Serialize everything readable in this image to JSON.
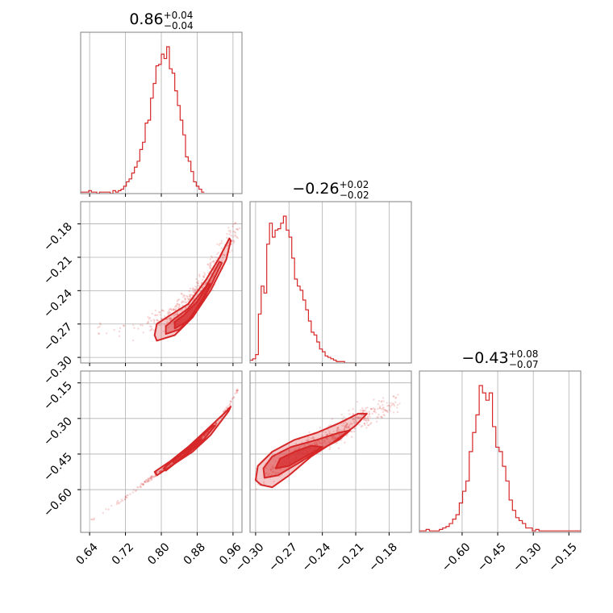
{
  "chart_data": {
    "type": "corner",
    "color": "#d62728",
    "grid": true,
    "params": [
      {
        "title": {
          "value": "0.86",
          "plus": "+0.04",
          "minus": "−0.04"
        },
        "range": [
          0.62,
          0.98
        ],
        "ticks": [
          0.64,
          0.72,
          0.8,
          0.88,
          0.96
        ],
        "tick_labels": [
          "0.64",
          "0.72",
          "0.80",
          "0.88",
          "0.96"
        ],
        "histogram": {
          "bins_start": 0.62,
          "bin_width": 0.006,
          "counts": [
            1,
            1,
            1,
            2,
            1,
            1,
            0,
            1,
            1,
            1,
            1,
            0,
            2,
            1,
            2,
            3,
            5,
            8,
            10,
            14,
            18,
            22,
            30,
            35,
            48,
            50,
            65,
            75,
            87,
            88,
            95,
            92,
            100,
            85,
            82,
            70,
            60,
            50,
            40,
            25,
            22,
            15,
            8,
            5,
            3,
            1
          ]
        }
      },
      {
        "title": {
          "value": "−0.26",
          "plus": "+0.02",
          "minus": "−0.02"
        },
        "range": [
          -0.305,
          -0.16
        ],
        "ticks": [
          -0.3,
          -0.27,
          -0.24,
          -0.21,
          -0.18
        ],
        "tick_labels": [
          "−0.30",
          "−0.27",
          "−0.24",
          "−0.21",
          "−0.18"
        ],
        "histogram": {
          "bins_start": -0.305,
          "bin_width": 0.0025,
          "counts": [
            2,
            3,
            6,
            35,
            55,
            50,
            85,
            100,
            90,
            95,
            96,
            100,
            105,
            95,
            90,
            75,
            60,
            55,
            52,
            45,
            38,
            30,
            22,
            20,
            15,
            10,
            8,
            5,
            4,
            3,
            2,
            1,
            1,
            1,
            0,
            0,
            0,
            0
          ]
        }
      },
      {
        "title": {
          "value": "−0.43",
          "plus": "+0.08",
          "minus": "−0.07"
        },
        "range": [
          -0.78,
          -0.1
        ],
        "ticks": [
          -0.6,
          -0.45,
          -0.3,
          -0.15
        ],
        "tick_labels": [
          "−0.60",
          "−0.45",
          "−0.30",
          "−0.15"
        ],
        "histogram": {
          "bins_start": -0.78,
          "bin_width": 0.014,
          "counts": [
            1,
            1,
            2,
            1,
            1,
            1,
            2,
            3,
            4,
            6,
            9,
            12,
            20,
            28,
            35,
            55,
            68,
            80,
            100,
            95,
            90,
            95,
            72,
            58,
            55,
            45,
            35,
            22,
            15,
            10,
            8,
            6,
            3,
            3,
            1,
            2,
            1,
            1,
            1,
            1,
            1,
            1,
            1,
            1,
            1,
            1,
            1,
            1,
            1
          ]
        }
      }
    ],
    "pairs": [
      {
        "x": 0,
        "y": 1,
        "trend": [
          [
            0.66,
            -0.273
          ],
          [
            0.72,
            -0.272
          ],
          [
            0.78,
            -0.269
          ],
          [
            0.81,
            -0.265
          ],
          [
            0.84,
            -0.258
          ],
          [
            0.87,
            -0.247
          ],
          [
            0.9,
            -0.232
          ],
          [
            0.93,
            -0.212
          ],
          [
            0.955,
            -0.192
          ],
          [
            0.965,
            -0.185
          ]
        ],
        "contours": [
          {
            "level": "outer",
            "points": [
              [
                0.79,
                -0.285
              ],
              [
                0.83,
                -0.28
              ],
              [
                0.87,
                -0.264
              ],
              [
                0.91,
                -0.24
              ],
              [
                0.945,
                -0.212
              ],
              [
                0.955,
                -0.195
              ],
              [
                0.952,
                -0.193
              ],
              [
                0.93,
                -0.21
              ],
              [
                0.9,
                -0.23
              ],
              [
                0.86,
                -0.252
              ],
              [
                0.82,
                -0.262
              ],
              [
                0.79,
                -0.27
              ],
              [
                0.785,
                -0.28
              ]
            ]
          },
          {
            "level": "middle",
            "points": [
              [
                0.81,
                -0.279
              ],
              [
                0.84,
                -0.275
              ],
              [
                0.88,
                -0.258
              ],
              [
                0.91,
                -0.236
              ],
              [
                0.935,
                -0.215
              ],
              [
                0.93,
                -0.214
              ],
              [
                0.9,
                -0.236
              ],
              [
                0.86,
                -0.256
              ],
              [
                0.83,
                -0.265
              ],
              [
                0.81,
                -0.272
              ]
            ]
          },
          {
            "level": "inner",
            "points": [
              [
                0.83,
                -0.274
              ],
              [
                0.86,
                -0.267
              ],
              [
                0.89,
                -0.249
              ],
              [
                0.91,
                -0.234
              ],
              [
                0.905,
                -0.234
              ],
              [
                0.88,
                -0.25
              ],
              [
                0.85,
                -0.262
              ],
              [
                0.83,
                -0.268
              ]
            ]
          }
        ]
      },
      {
        "x": 0,
        "y": 2,
        "trend": [
          [
            0.645,
            -0.73
          ],
          [
            0.7,
            -0.66
          ],
          [
            0.75,
            -0.59
          ],
          [
            0.8,
            -0.52
          ],
          [
            0.85,
            -0.45
          ],
          [
            0.88,
            -0.4
          ],
          [
            0.92,
            -0.33
          ],
          [
            0.95,
            -0.25
          ],
          [
            0.97,
            -0.18
          ]
        ],
        "contours": [
          {
            "level": "outer",
            "points": [
              [
                0.79,
                -0.54
              ],
              [
                0.83,
                -0.49
              ],
              [
                0.87,
                -0.44
              ],
              [
                0.91,
                -0.37
              ],
              [
                0.95,
                -0.27
              ],
              [
                0.955,
                -0.25
              ],
              [
                0.945,
                -0.27
              ],
              [
                0.9,
                -0.35
              ],
              [
                0.86,
                -0.42
              ],
              [
                0.82,
                -0.48
              ],
              [
                0.785,
                -0.525
              ]
            ]
          },
          {
            "level": "middle",
            "points": [
              [
                0.81,
                -0.52
              ],
              [
                0.85,
                -0.46
              ],
              [
                0.89,
                -0.4
              ],
              [
                0.92,
                -0.33
              ],
              [
                0.915,
                -0.33
              ],
              [
                0.88,
                -0.39
              ],
              [
                0.84,
                -0.45
              ],
              [
                0.805,
                -0.51
              ]
            ]
          },
          {
            "level": "inner",
            "points": [
              [
                0.83,
                -0.49
              ],
              [
                0.86,
                -0.44
              ],
              [
                0.89,
                -0.39
              ],
              [
                0.885,
                -0.39
              ],
              [
                0.855,
                -0.435
              ],
              [
                0.825,
                -0.48
              ]
            ]
          }
        ]
      },
      {
        "x": 1,
        "y": 2,
        "trend": [
          [
            -0.3,
            -0.57
          ],
          [
            -0.29,
            -0.54
          ],
          [
            -0.275,
            -0.48
          ],
          [
            -0.255,
            -0.42
          ],
          [
            -0.235,
            -0.38
          ],
          [
            -0.215,
            -0.33
          ],
          [
            -0.2,
            -0.29
          ],
          [
            -0.185,
            -0.26
          ],
          [
            -0.175,
            -0.25
          ]
        ],
        "contours": [
          {
            "level": "outer",
            "points": [
              [
                -0.295,
                -0.58
              ],
              [
                -0.285,
                -0.59
              ],
              [
                -0.27,
                -0.54
              ],
              [
                -0.25,
                -0.46
              ],
              [
                -0.23,
                -0.4
              ],
              [
                -0.21,
                -0.33
              ],
              [
                -0.2,
                -0.28
              ],
              [
                -0.208,
                -0.28
              ],
              [
                -0.225,
                -0.32
              ],
              [
                -0.245,
                -0.36
              ],
              [
                -0.265,
                -0.39
              ],
              [
                -0.285,
                -0.44
              ],
              [
                -0.298,
                -0.5
              ],
              [
                -0.3,
                -0.56
              ]
            ]
          },
          {
            "level": "middle",
            "points": [
              [
                -0.292,
                -0.55
              ],
              [
                -0.28,
                -0.54
              ],
              [
                -0.262,
                -0.49
              ],
              [
                -0.245,
                -0.44
              ],
              [
                -0.225,
                -0.39
              ],
              [
                -0.215,
                -0.35
              ],
              [
                -0.225,
                -0.36
              ],
              [
                -0.245,
                -0.39
              ],
              [
                -0.268,
                -0.42
              ],
              [
                -0.285,
                -0.46
              ],
              [
                -0.293,
                -0.51
              ]
            ]
          },
          {
            "level": "inner",
            "points": [
              [
                -0.282,
                -0.51
              ],
              [
                -0.27,
                -0.5
              ],
              [
                -0.255,
                -0.46
              ],
              [
                -0.24,
                -0.42
              ],
              [
                -0.25,
                -0.415
              ],
              [
                -0.265,
                -0.44
              ],
              [
                -0.278,
                -0.47
              ]
            ]
          }
        ]
      }
    ]
  }
}
